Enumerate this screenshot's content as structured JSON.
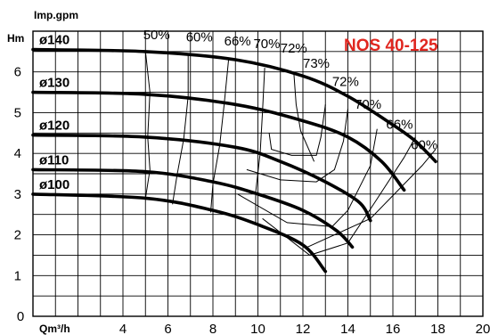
{
  "chart_data": {
    "type": "line",
    "title": "NOS 40-125",
    "title_color": "#e0261f",
    "top_label": "Imp.gpm",
    "ylabel": "Hm",
    "xlabel": "Qm³/h",
    "xlim": [
      0,
      20
    ],
    "ylim": [
      0,
      7
    ],
    "x_ticks": [
      {
        "value": 0,
        "label": "0"
      },
      {
        "value": 4,
        "label": "4"
      },
      {
        "value": 6,
        "label": "6"
      },
      {
        "value": 8,
        "label": "8"
      },
      {
        "value": 10,
        "label": "10"
      },
      {
        "value": 12,
        "label": "12"
      },
      {
        "value": 14,
        "label": "14"
      },
      {
        "value": 16,
        "label": "16"
      },
      {
        "value": 18,
        "label": "18"
      },
      {
        "value": 20,
        "label": "20"
      }
    ],
    "y_ticks": [
      {
        "value": 1,
        "label": "1"
      },
      {
        "value": 2,
        "label": "2"
      },
      {
        "value": 3,
        "label": "3"
      },
      {
        "value": 4,
        "label": "4"
      },
      {
        "value": 5,
        "label": "5"
      },
      {
        "value": 6,
        "label": "6"
      }
    ],
    "grid": true,
    "series": [
      {
        "name": "ø140",
        "points": [
          [
            0,
            6.55
          ],
          [
            5,
            6.5
          ],
          [
            9,
            6.3
          ],
          [
            12,
            5.9
          ],
          [
            14,
            5.4
          ],
          [
            16,
            4.7
          ],
          [
            17,
            4.3
          ],
          [
            17.9,
            3.8
          ]
        ]
      },
      {
        "name": "ø130",
        "points": [
          [
            0,
            5.5
          ],
          [
            5,
            5.45
          ],
          [
            9,
            5.2
          ],
          [
            12,
            4.8
          ],
          [
            14,
            4.4
          ],
          [
            15.5,
            3.8
          ],
          [
            16.5,
            3.1
          ]
        ]
      },
      {
        "name": "ø120",
        "points": [
          [
            0,
            4.45
          ],
          [
            5,
            4.4
          ],
          [
            9,
            4.15
          ],
          [
            11,
            3.8
          ],
          [
            13,
            3.3
          ],
          [
            14.5,
            2.8
          ],
          [
            15,
            2.35
          ]
        ]
      },
      {
        "name": "ø110",
        "points": [
          [
            0,
            3.6
          ],
          [
            5,
            3.55
          ],
          [
            8,
            3.3
          ],
          [
            10,
            3.0
          ],
          [
            12,
            2.6
          ],
          [
            13.5,
            2.1
          ],
          [
            14.2,
            1.7
          ]
        ]
      },
      {
        "name": "ø100",
        "points": [
          [
            0,
            3.0
          ],
          [
            5,
            2.9
          ],
          [
            8,
            2.6
          ],
          [
            10,
            2.25
          ],
          [
            12,
            1.75
          ],
          [
            13,
            1.1
          ]
        ]
      }
    ],
    "efficiency_labels": [
      "50%",
      "60%",
      "66%",
      "70%",
      "72%",
      "73%",
      "72%",
      "70%",
      "66%",
      "60%"
    ]
  }
}
